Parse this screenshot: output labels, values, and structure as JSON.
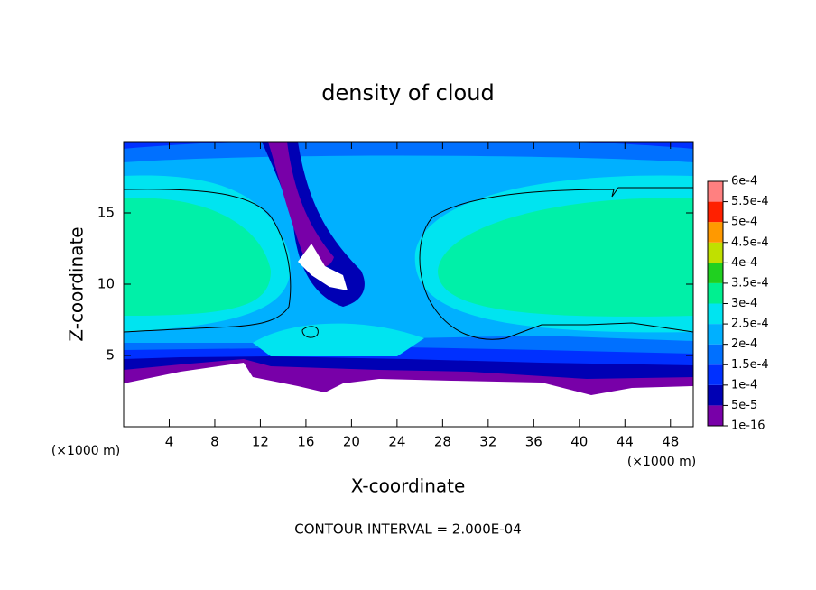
{
  "chart_data": {
    "type": "contour",
    "title": "density of cloud",
    "x_label": "X-coordinate",
    "y_label": "Z-coordinate",
    "x_unit": "(×1000 m)",
    "y_unit": "(×1000 m)",
    "note": "CONTOUR INTERVAL = 2.000E-04",
    "xlim": [
      0,
      50
    ],
    "xticks": [
      4,
      8,
      12,
      16,
      20,
      24,
      28,
      32,
      36,
      40,
      44,
      48
    ],
    "ylim": [
      0,
      20
    ],
    "yticks": [
      5,
      10,
      15
    ],
    "colorbar": {
      "levels": [
        {
          "value": 1e-16,
          "label": "1e-16"
        },
        {
          "value": 5e-05,
          "label": "5e-5"
        },
        {
          "value": 0.0001,
          "label": "1e-4"
        },
        {
          "value": 0.00015,
          "label": "1.5e-4"
        },
        {
          "value": 0.0002,
          "label": "2e-4"
        },
        {
          "value": 0.00025,
          "label": "2.5e-4"
        },
        {
          "value": 0.0003,
          "label": "3e-4"
        },
        {
          "value": 0.00035,
          "label": "3.5e-4"
        },
        {
          "value": 0.0004,
          "label": "4e-4"
        },
        {
          "value": 0.00045,
          "label": "4.5e-4"
        },
        {
          "value": 0.0005,
          "label": "5e-4"
        },
        {
          "value": 0.00055,
          "label": "5.5e-4"
        },
        {
          "value": 0.0006,
          "label": "6e-4"
        }
      ],
      "colors": [
        "#7800a8",
        "#0000b4",
        "#0030ff",
        "#0070ff",
        "#00b0ff",
        "#00e4f0",
        "#00f090",
        "#20d020",
        "#c0e000",
        "#ff9900",
        "#ff2000",
        "#ff8080"
      ]
    }
  }
}
